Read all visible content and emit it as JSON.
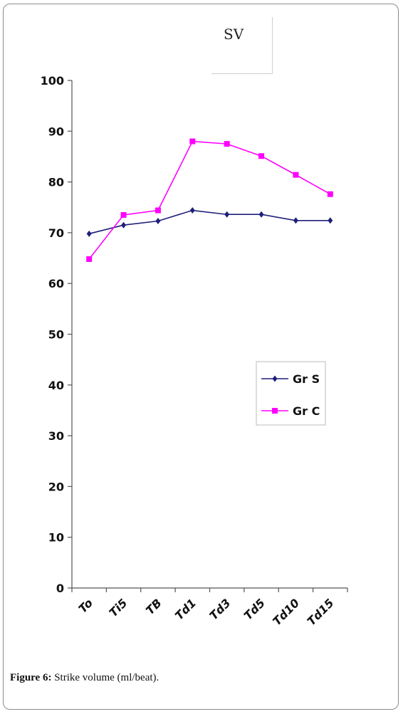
{
  "chart_data": {
    "type": "line",
    "title": "SV",
    "categories": [
      "To",
      "Ti5",
      "TB",
      "Td1",
      "Td3",
      "Td5",
      "Td10",
      "Td15"
    ],
    "ylim": [
      0,
      100
    ],
    "yticks": [
      0,
      10,
      20,
      30,
      40,
      50,
      60,
      70,
      80,
      90,
      100
    ],
    "series": [
      {
        "name": "Gr S",
        "color": "#1f1f7a",
        "marker": "diamond",
        "values": [
          69.8,
          71.5,
          72.3,
          74.4,
          73.6,
          73.6,
          72.4,
          72.4
        ]
      },
      {
        "name": "Gr C",
        "color": "#ff00ff",
        "marker": "square",
        "values": [
          64.8,
          73.5,
          74.4,
          88.0,
          87.5,
          85.1,
          81.4,
          77.6
        ]
      }
    ],
    "legend_position": "right"
  },
  "caption": {
    "label": "Figure 6:",
    "text": " Strike volume (ml/beat)."
  }
}
